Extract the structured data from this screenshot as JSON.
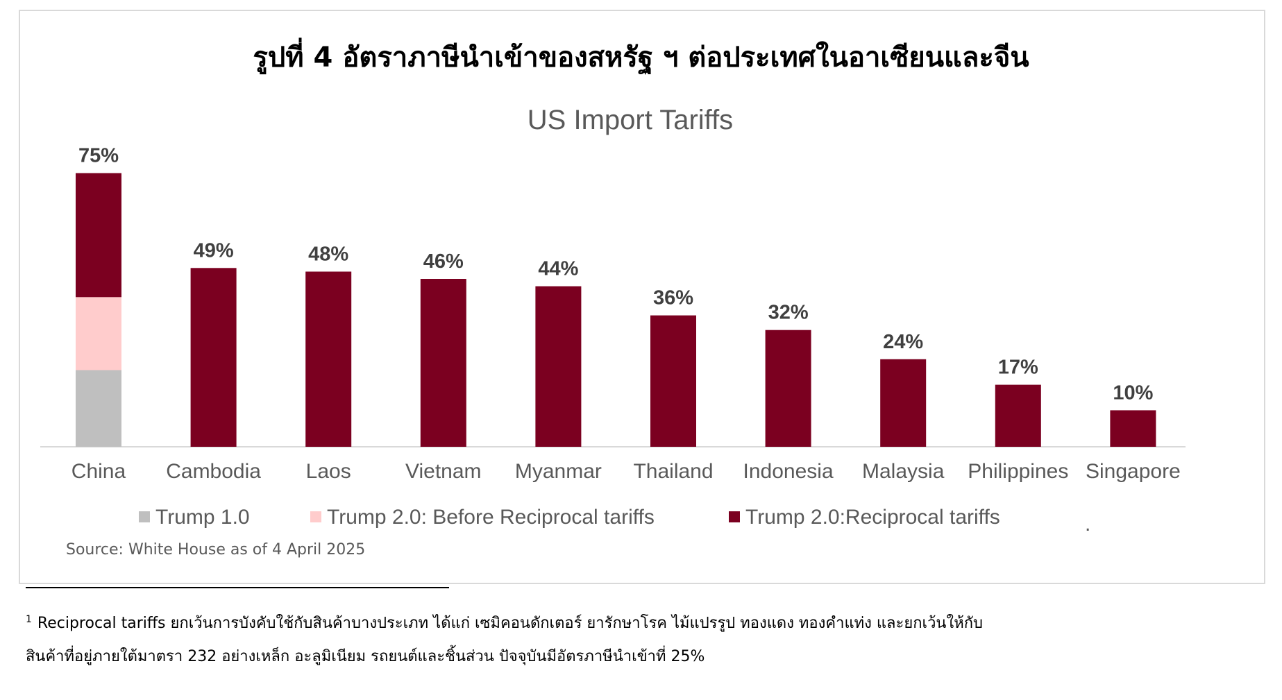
{
  "figure": {
    "title": "รูปที่ 4 อัตราภาษีนำเข้าของสหรัฐ ฯ ต่อประเทศในอาเซียนและจีน",
    "source": "Source: White House as of 4 April 2025",
    "legend_trailing_mark": "."
  },
  "chart_data": {
    "type": "bar",
    "stacked": true,
    "title": "US Import Tariffs",
    "categories": [
      "China",
      "Cambodia",
      "Laos",
      "Vietnam",
      "Myanmar",
      "Thailand",
      "Indonesia",
      "Malaysia",
      "Philippines",
      "Singapore"
    ],
    "series": [
      {
        "name": "Trump 1.0",
        "color": "#bfbfbf",
        "values": [
          21,
          0,
          0,
          0,
          0,
          0,
          0,
          0,
          0,
          0
        ]
      },
      {
        "name": "Trump 2.0: Before Reciprocal tariffs",
        "color": "#ffcccc",
        "values": [
          20,
          0,
          0,
          0,
          0,
          0,
          0,
          0,
          0,
          0
        ]
      },
      {
        "name": "Trump 2.0:Reciprocal tariffs",
        "color": "#7b0020",
        "values": [
          34,
          49,
          48,
          46,
          44,
          36,
          32,
          24,
          17,
          10
        ]
      }
    ],
    "total_labels": [
      "75%",
      "49%",
      "48%",
      "46%",
      "44%",
      "36%",
      "32%",
      "24%",
      "17%",
      "10%"
    ],
    "ylim": [
      0,
      80
    ],
    "grid": false,
    "legend_position": "bottom"
  },
  "footnote": {
    "marker": "1",
    "line1": "Reciprocal tariffs ยกเว้นการบังคับใช้กับสินค้าบางประเภท ได้แก่ เซมิคอนดักเตอร์ ยารักษาโรค ไม้แปรรูป ทองแดง ทองคำแท่ง และยกเว้นให้กับ",
    "line2": "สินค้าที่อยู่ภายใต้มาตรา 232 อย่างเหล็ก อะลูมิเนียม รถยนต์และชิ้นส่วน ปัจจุบันมีอัตรภาษีนำเข้าที่ 25%"
  }
}
